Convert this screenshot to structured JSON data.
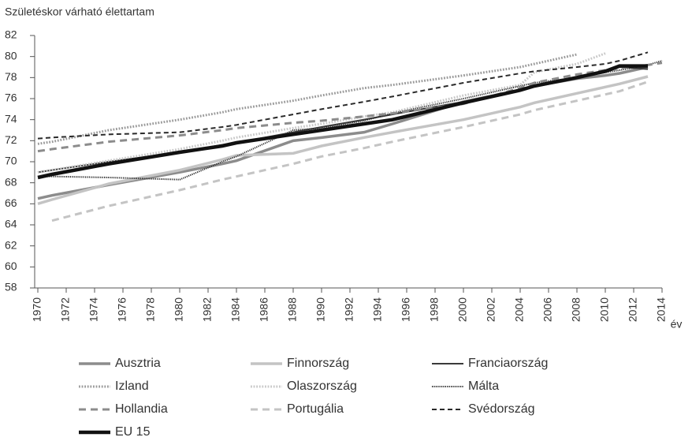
{
  "chart_data": {
    "type": "line",
    "ylabel": "Születéskor várható élettartam",
    "xlabel": "év",
    "x": [
      1970,
      1971,
      1975,
      1980,
      1983,
      1984,
      1988,
      1990,
      1993,
      1995,
      2000,
      2004,
      2005,
      2008,
      2010,
      2011,
      2013,
      2014
    ],
    "xlim": [
      1970,
      2014
    ],
    "xticks": [
      1970,
      1972,
      1974,
      1976,
      1978,
      1980,
      1982,
      1984,
      1986,
      1988,
      1990,
      1992,
      1994,
      1996,
      1998,
      2000,
      2002,
      2004,
      2006,
      2008,
      2010,
      2012,
      2014
    ],
    "ylim": [
      58,
      82
    ],
    "yticks": [
      58,
      60,
      62,
      64,
      66,
      68,
      70,
      72,
      74,
      76,
      78,
      80,
      82
    ],
    "series": [
      {
        "name": "Ausztria",
        "color": "#8c8c8c",
        "style": "solid",
        "width": 3.5,
        "values": [
          66.5,
          66.8,
          67.8,
          69.0,
          69.8,
          70.1,
          72.0,
          72.3,
          72.8,
          73.6,
          75.7,
          76.8,
          77.2,
          77.9,
          78.2,
          78.4,
          79.0,
          null
        ]
      },
      {
        "name": "Finnország",
        "color": "#c4c4c4",
        "style": "solid",
        "width": 3.5,
        "values": [
          66.0,
          66.4,
          67.9,
          69.2,
          70.2,
          70.6,
          70.8,
          71.5,
          72.3,
          72.8,
          74.0,
          75.2,
          75.6,
          76.5,
          77.1,
          77.4,
          78.1,
          null
        ]
      },
      {
        "name": "Franciaország",
        "color": "#3a3a3a",
        "style": "solid",
        "width": 2,
        "values": [
          69.0,
          69.2,
          70.0,
          70.9,
          71.6,
          71.8,
          72.8,
          73.3,
          74.0,
          74.5,
          75.7,
          76.8,
          77.2,
          78.0,
          78.5,
          79.0,
          78.8,
          null
        ]
      },
      {
        "name": "Izland",
        "color": "#9a9a9a",
        "style": "dotted",
        "width": 3,
        "values": [
          71.7,
          71.9,
          73.0,
          74.0,
          74.7,
          75.0,
          75.8,
          76.3,
          77.0,
          77.3,
          78.2,
          79.0,
          79.3,
          80.2,
          null,
          null,
          null,
          null
        ]
      },
      {
        "name": "Olaszország",
        "color": "#c8c8c8",
        "style": "dotted",
        "width": 3,
        "values": [
          69.0,
          69.2,
          70.1,
          71.2,
          72.0,
          72.3,
          73.2,
          73.6,
          74.3,
          74.7,
          76.3,
          77.3,
          78.5,
          79.3,
          80.3,
          null,
          null,
          null
        ]
      },
      {
        "name": "Málta",
        "color": "#2a2a2a",
        "style": "dotted",
        "width": 2,
        "values": [
          68.6,
          68.6,
          68.5,
          68.3,
          70.0,
          70.5,
          73.0,
          73.2,
          73.9,
          74.6,
          76.0,
          77.2,
          77.5,
          78.0,
          78.5,
          78.7,
          79.2,
          79.6
        ]
      },
      {
        "name": "Hollandia",
        "color": "#8c8c8c",
        "style": "dashed",
        "width": 3,
        "values": [
          71.0,
          71.2,
          71.9,
          72.5,
          73.0,
          73.2,
          73.7,
          73.9,
          74.3,
          74.6,
          75.5,
          77.0,
          77.5,
          78.3,
          78.7,
          78.9,
          79.2,
          79.4
        ]
      },
      {
        "name": "Portugália",
        "color": "#c4c4c4",
        "style": "dashed",
        "width": 3,
        "values": [
          null,
          64.4,
          65.8,
          67.3,
          68.3,
          68.6,
          69.8,
          70.5,
          71.3,
          71.9,
          73.3,
          74.5,
          74.9,
          75.8,
          76.4,
          76.7,
          77.6,
          null
        ]
      },
      {
        "name": "Svédország",
        "color": "#2a2a2a",
        "style": "dashed",
        "width": 2,
        "values": [
          72.2,
          72.3,
          72.6,
          72.8,
          73.3,
          73.5,
          74.5,
          75.0,
          75.7,
          76.2,
          77.5,
          78.4,
          78.6,
          79.0,
          79.3,
          79.6,
          80.4,
          null
        ]
      },
      {
        "name": "EU 15",
        "color": "#111111",
        "style": "solid",
        "width": 4.5,
        "values": [
          68.5,
          68.8,
          69.8,
          70.9,
          71.5,
          71.8,
          72.6,
          73.0,
          73.6,
          74.0,
          75.6,
          76.8,
          77.2,
          78.0,
          78.6,
          79.1,
          79.1,
          null
        ]
      }
    ]
  }
}
